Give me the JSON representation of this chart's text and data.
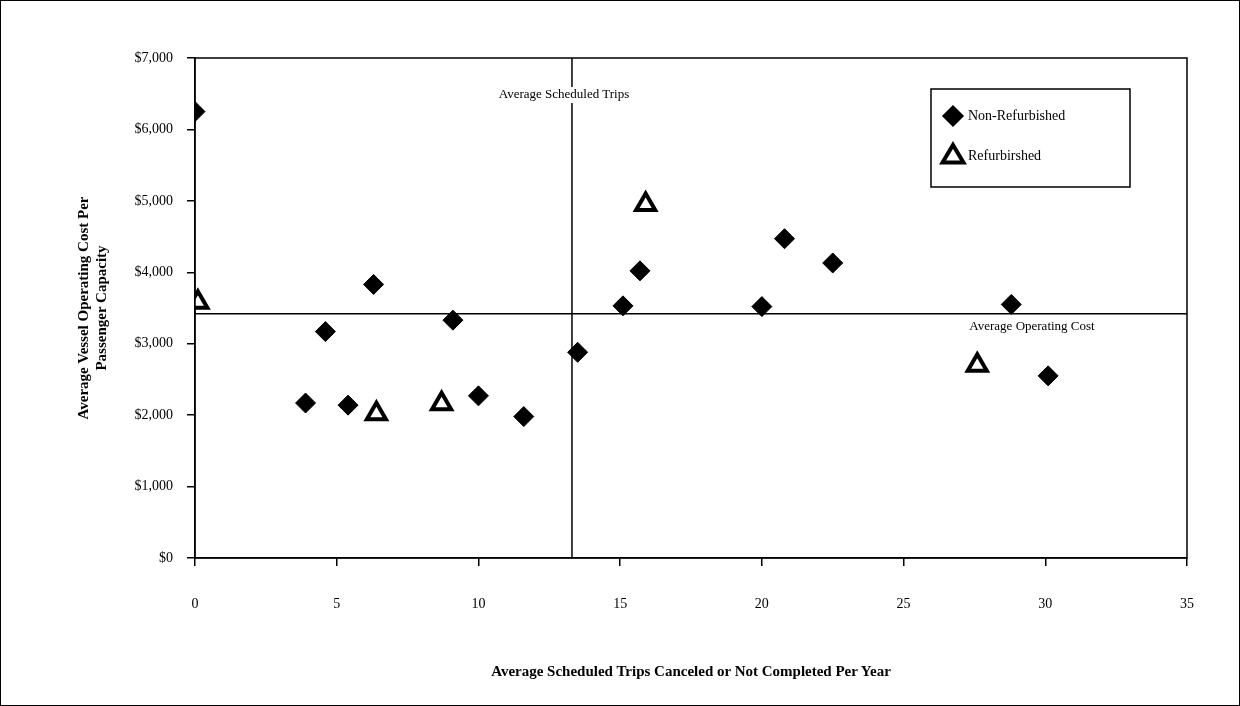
{
  "chart_data": {
    "type": "scatter",
    "xlabel": "Average Scheduled Trips Canceled or Not Completed Per Year",
    "ylabel": "Average Vessel Operating Cost Per\nPassenger Capacity",
    "xlim": [
      0,
      35
    ],
    "xticks": [
      0,
      5,
      10,
      15,
      20,
      25,
      30,
      35
    ],
    "ylim": [
      0,
      7000
    ],
    "yticks": [
      {
        "value": 0,
        "label": "$0"
      },
      {
        "value": 1000,
        "label": "$1,000"
      },
      {
        "value": 2000,
        "label": "$2,000"
      },
      {
        "value": 3000,
        "label": "$3,000"
      },
      {
        "value": 4000,
        "label": "$4,000"
      },
      {
        "value": 5000,
        "label": "$5,000"
      },
      {
        "value": 6000,
        "label": "$6,000"
      },
      {
        "value": 7000,
        "label": "$7,000"
      }
    ],
    "legend": "top right",
    "series": [
      {
        "name": "Non-Refurbished",
        "color": "#000000",
        "marker": "diamond",
        "x": [
          0,
          3.9,
          4.6,
          5.4,
          6.3,
          9.1,
          10,
          11.6,
          13.5,
          15.1,
          15.7,
          20,
          20.8,
          22.5,
          28.8,
          30.1
        ],
        "values": [
          6250,
          2170,
          3170,
          2140,
          3830,
          3330,
          2270,
          1980,
          2880,
          3530,
          4020,
          3520,
          4470,
          4130,
          3550,
          2550
        ]
      },
      {
        "name": "Refurbirshed",
        "color": "#000000",
        "marker": "triangle",
        "x": [
          0.1,
          6.4,
          8.7,
          15.9,
          27.6
        ],
        "values": [
          3580,
          2020,
          2160,
          4950,
          2700
        ]
      }
    ],
    "ref_lines": [
      {
        "axis": "x",
        "value": 13.3,
        "label": "Average Scheduled Trips"
      },
      {
        "axis": "y",
        "value": 3420,
        "label": "Average Operating Cost"
      }
    ]
  }
}
